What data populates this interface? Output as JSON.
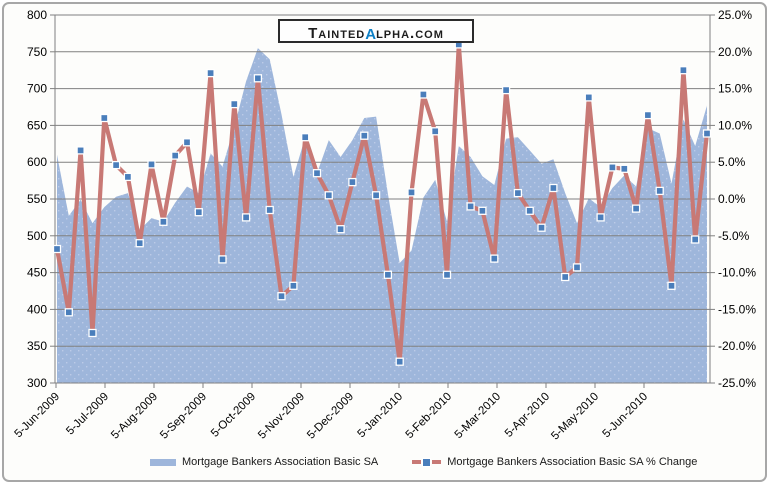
{
  "logo": {
    "prefix": "Tainted",
    "alpha": "α",
    "suffix": "lpha.com",
    "alpha_color": "#0e80c6"
  },
  "colors": {
    "area_fill": "#9eb6db",
    "area_dot": "#bccbe7",
    "line": "#c87975",
    "marker_fill": "#4a7ebb",
    "marker_stroke": "#ffffff",
    "gridline": "#808080",
    "axis_text": "#000000",
    "frame_border": "#a7a7a7"
  },
  "chart_data": {
    "type": "area+line combo",
    "title": "",
    "watermark": "TaintedΑlpha.com",
    "grid": "horizontal gridlines on",
    "legend_position": "bottom",
    "x_tick_labels": [
      "5-Jun-2009",
      "5-Jul-2009",
      "5-Aug-2009",
      "5-Sep-2009",
      "5-Oct-2009",
      "5-Nov-2009",
      "5-Dec-2009",
      "5-Jan-2010",
      "5-Feb-2010",
      "5-Mar-2010",
      "5-Apr-2010",
      "5-May-2010",
      "5-Jun-2010"
    ],
    "x_note": "weekly observations starting 5-Jun-2009",
    "left_axis": {
      "min": 300,
      "max": 800,
      "step": 50,
      "labels": [
        "800",
        "750",
        "700",
        "650",
        "600",
        "550",
        "500",
        "450",
        "400",
        "350",
        "300"
      ]
    },
    "right_axis": {
      "min": -25,
      "max": 25,
      "step": 5,
      "labels": [
        "25.0%",
        "20.0%",
        "15.0%",
        "10.0%",
        "5.0%",
        "0.0%",
        "-5.0%",
        "-10.0%",
        "-15.0%",
        "-20.0%",
        "-25.0%"
      ]
    },
    "series": [
      {
        "name": "Mortgage Bankers Association Basic SA",
        "type": "area",
        "axis": "left",
        "values": [
          610,
          527,
          549,
          517,
          539,
          553,
          558,
          508,
          524,
          519,
          545,
          567,
          558,
          612,
          594,
          648,
          710,
          755,
          740,
          665,
          580,
          634,
          585,
          630,
          607,
          630,
          660,
          662,
          557,
          463,
          480,
          552,
          576,
          519,
          622,
          607,
          581,
          569,
          632,
          634,
          616,
          598,
          604,
          558,
          517,
          551,
          539,
          565,
          582,
          567,
          646,
          639,
          571,
          658,
          622,
          677
        ]
      },
      {
        "name": "Mortgage Bankers Association Basic SA % Change",
        "type": "line",
        "axis": "right",
        "values": [
          -6.8,
          -15.4,
          6.6,
          -18.2,
          11.0,
          4.6,
          3.0,
          -6.0,
          4.7,
          -3.1,
          5.9,
          7.7,
          -1.8,
          17.1,
          -8.2,
          12.9,
          -2.5,
          16.4,
          -1.5,
          -13.2,
          -11.8,
          8.4,
          3.5,
          0.5,
          -4.1,
          2.3,
          8.6,
          0.5,
          -10.3,
          -22.1,
          0.9,
          14.2,
          9.2,
          -10.3,
          21.0,
          -1.0,
          -1.6,
          -8.1,
          14.8,
          0.8,
          -1.6,
          -3.9,
          1.5,
          -10.6,
          -9.3,
          13.8,
          -2.5,
          4.3,
          4.1,
          -1.3,
          11.4,
          1.1,
          -11.8,
          17.5,
          -5.5,
          8.9
        ]
      }
    ],
    "legend": [
      {
        "label": "Mortgage Bankers Association Basic SA",
        "swatch": "blue-area"
      },
      {
        "label": "Mortgage Bankers Association Basic SA % Change",
        "swatch": "red-line-with-marker"
      }
    ]
  }
}
